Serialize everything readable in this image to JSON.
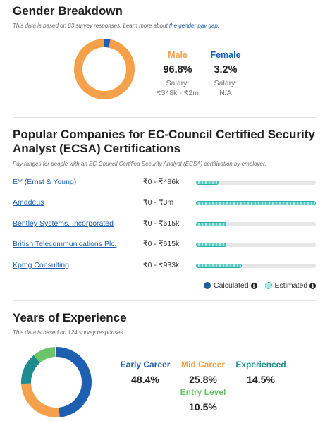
{
  "gender": {
    "title": "Gender Breakdown",
    "note_prefix": "This data is based on 63 survey responses. Learn more about ",
    "note_link": "the gender pay gap",
    "note_suffix": ".",
    "male": {
      "label": "Male",
      "pct": "96.8%",
      "salary_label": "Salary:",
      "salary": "₹348k - ₹2m",
      "color": "#f5a04a",
      "share": 0.968
    },
    "female": {
      "label": "Female",
      "pct": "3.2%",
      "salary_label": "Salary:",
      "salary": "N/A",
      "color": "#1f5fb0",
      "share": 0.032
    }
  },
  "companies": {
    "title_line1": "Popular Companies for EC-Council Certified Security",
    "title_line2": "Analyst (ECSA) Certifications",
    "note": "Pay ranges for people with an EC-Council Certified Security Analyst (ECSA) certification by employer.",
    "rows": [
      {
        "name": "EY (Ernst & Young)",
        "range": "₹0 - ₹486k",
        "fill": 0.19
      },
      {
        "name": "Amadeus",
        "range": "₹0 - ₹3m",
        "fill": 1.0
      },
      {
        "name": "Bentley Systems, Incorporated",
        "range": "₹0 - ₹615k",
        "fill": 0.25
      },
      {
        "name": "British Telecommunications Plc.",
        "range": "₹0 - ₹615k",
        "fill": 0.25
      },
      {
        "name": "Kpmg Consulting",
        "range": "₹0 - ₹933k",
        "fill": 0.38
      }
    ],
    "legend": {
      "calculated": "Calculated",
      "estimated": "Estimated",
      "info_glyph": "i"
    }
  },
  "experience": {
    "title": "Years of Experience",
    "note": "This data is based on 124 survey responses.",
    "early": {
      "label": "Early Career",
      "pct": "48.4%",
      "color": "#1f5fb0",
      "share": 0.484
    },
    "mid": {
      "label": "Mid Career",
      "pct": "25.8%",
      "color": "#f5a04a",
      "share": 0.258
    },
    "experienced": {
      "label": "Experienced",
      "pct": "14.5%",
      "color": "#1e8c8c",
      "share": 0.145
    },
    "entry": {
      "label": "Entry Level",
      "pct": "10.5%",
      "color": "#6cc46a",
      "share": 0.105
    }
  }
}
